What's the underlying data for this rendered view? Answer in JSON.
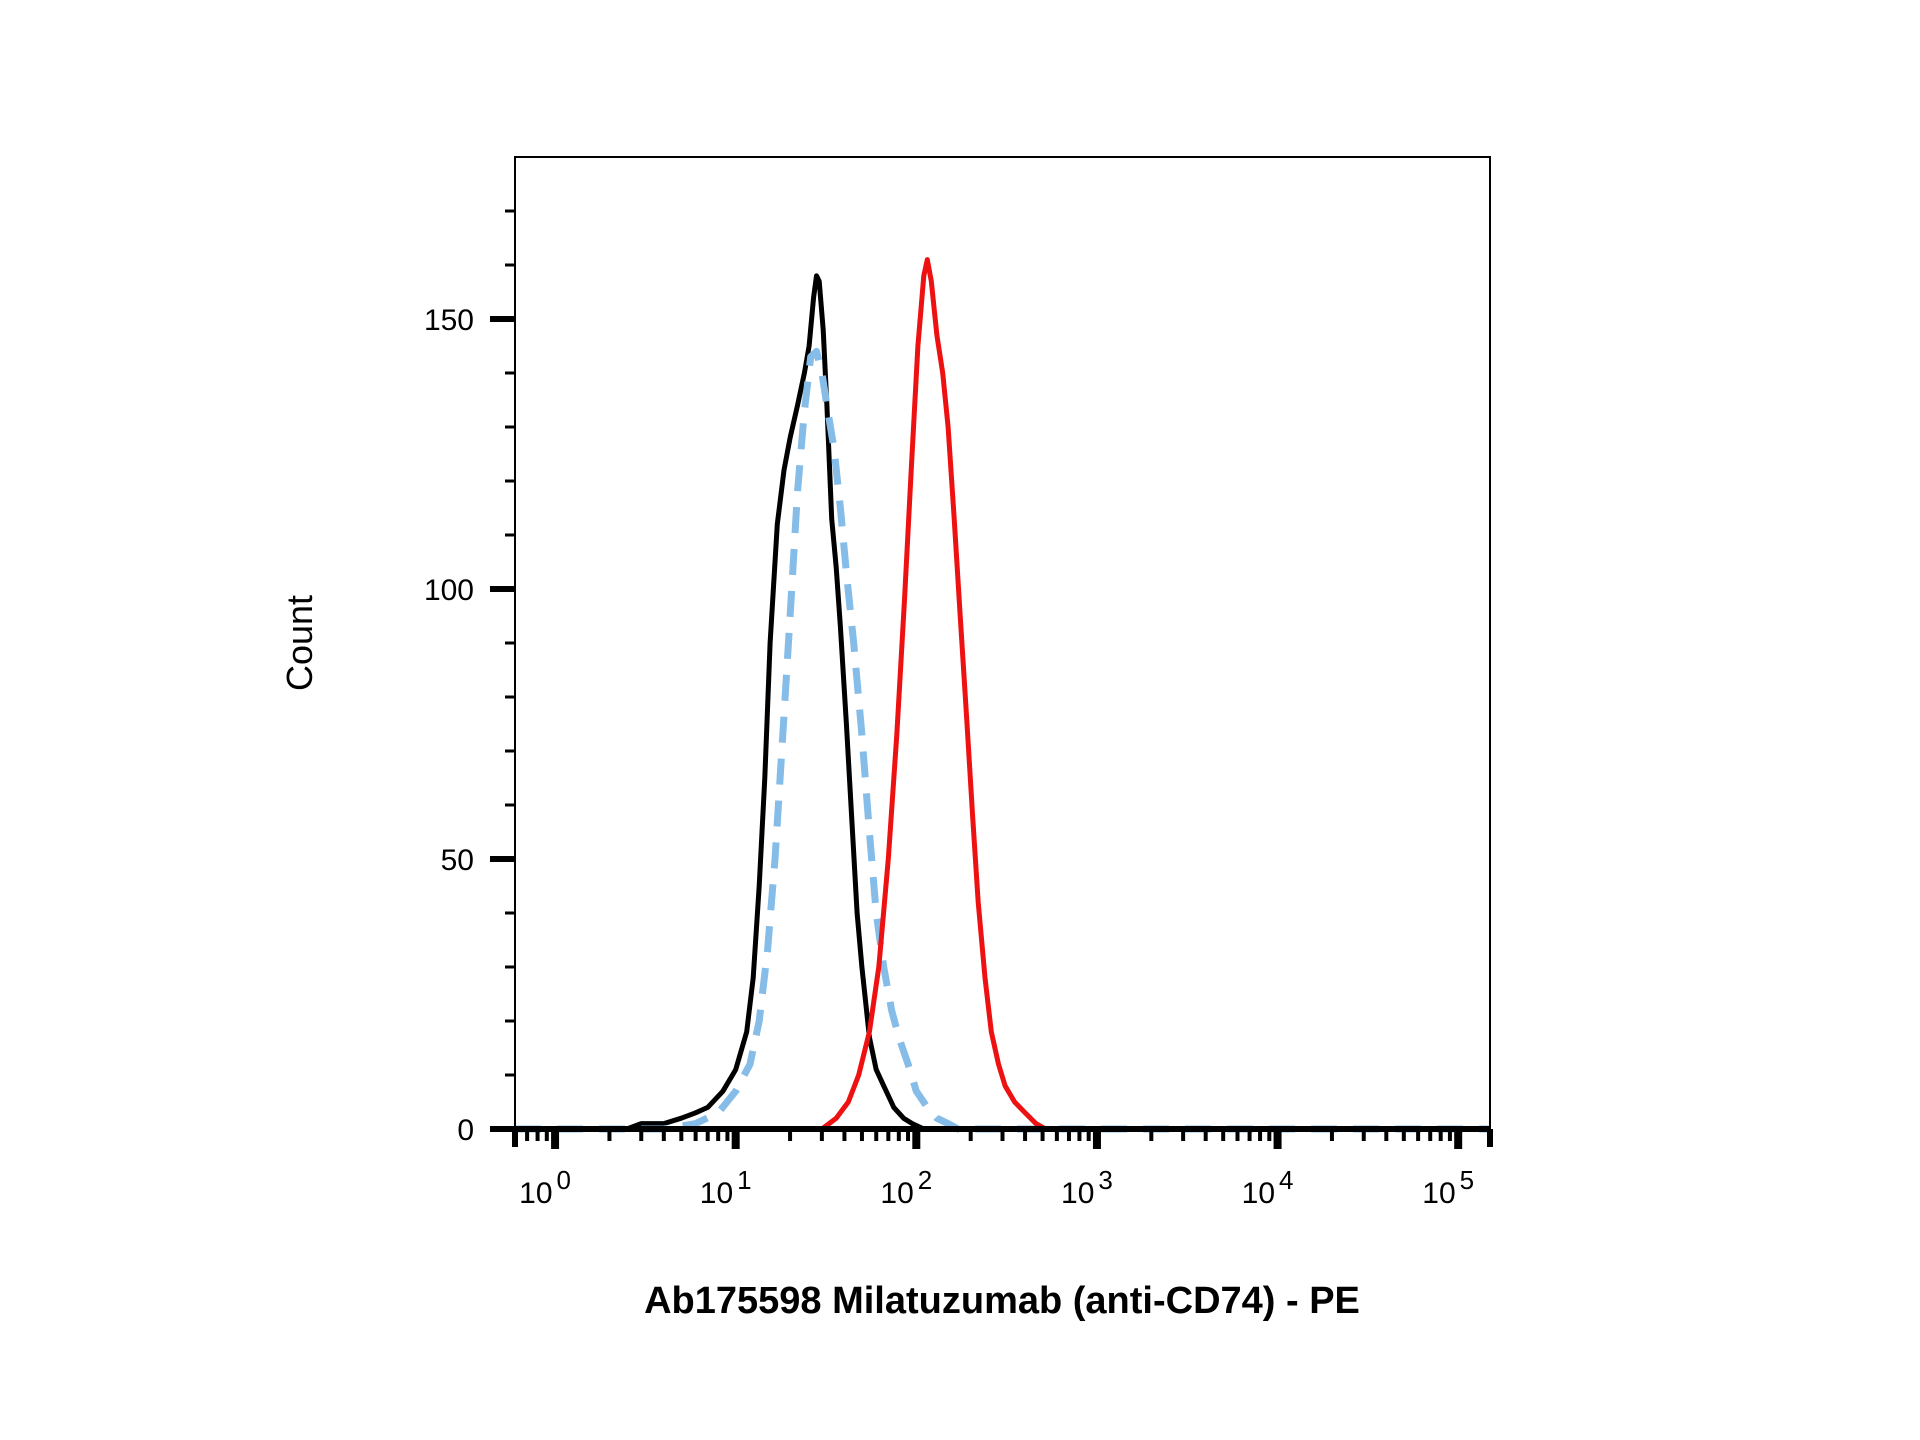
{
  "chart_data": {
    "type": "line",
    "title": "",
    "xlabel": "Ab175598 Milatuzumab (anti-CD74) - PE",
    "ylabel": "Count",
    "x_scale": "log",
    "xlim": [
      0.6,
      150000
    ],
    "ylim": [
      0,
      180
    ],
    "x_ticks": [
      {
        "base": "10",
        "exp": "0"
      },
      {
        "base": "10",
        "exp": "1"
      },
      {
        "base": "10",
        "exp": "2"
      },
      {
        "base": "10",
        "exp": "3"
      },
      {
        "base": "10",
        "exp": "4"
      },
      {
        "base": "10",
        "exp": "5"
      }
    ],
    "y_ticks": [
      {
        "label": "0",
        "value": 0
      },
      {
        "label": "50",
        "value": 50
      },
      {
        "label": "100",
        "value": 100
      },
      {
        "label": "150",
        "value": 150
      }
    ],
    "grid": false,
    "legend": "none",
    "series": [
      {
        "color": "#000000",
        "style": "solid",
        "points": [
          [
            0.6,
            0
          ],
          [
            2.5,
            0
          ],
          [
            3.0,
            1
          ],
          [
            4.0,
            1
          ],
          [
            5.0,
            2
          ],
          [
            6.0,
            3
          ],
          [
            7.0,
            4
          ],
          [
            8.5,
            7
          ],
          [
            10,
            11
          ],
          [
            11.5,
            18
          ],
          [
            12.5,
            28
          ],
          [
            13.5,
            45
          ],
          [
            14.5,
            65
          ],
          [
            15.5,
            90
          ],
          [
            17,
            112
          ],
          [
            18.5,
            122
          ],
          [
            20,
            128
          ],
          [
            22,
            134
          ],
          [
            24,
            140
          ],
          [
            25.5,
            145
          ],
          [
            27,
            154
          ],
          [
            28,
            158
          ],
          [
            29,
            157
          ],
          [
            30.5,
            148
          ],
          [
            32,
            134
          ],
          [
            34,
            113
          ],
          [
            36,
            104
          ],
          [
            38,
            93
          ],
          [
            41,
            75
          ],
          [
            44,
            57
          ],
          [
            47,
            40
          ],
          [
            50,
            30
          ],
          [
            55,
            17
          ],
          [
            60,
            11
          ],
          [
            66,
            8
          ],
          [
            75,
            4
          ],
          [
            85,
            2
          ],
          [
            95,
            1
          ],
          [
            110,
            0
          ],
          [
            150000,
            0
          ]
        ]
      },
      {
        "color": "#85bce8",
        "style": "dashed",
        "points": [
          [
            0.6,
            0
          ],
          [
            4.0,
            0
          ],
          [
            6.0,
            1
          ],
          [
            8.0,
            3
          ],
          [
            10,
            7
          ],
          [
            12,
            12
          ],
          [
            13.5,
            20
          ],
          [
            15,
            33
          ],
          [
            16.5,
            50
          ],
          [
            18,
            70
          ],
          [
            20,
            95
          ],
          [
            22,
            118
          ],
          [
            24,
            133
          ],
          [
            26,
            143
          ],
          [
            28,
            144
          ],
          [
            30,
            140
          ],
          [
            32,
            134
          ],
          [
            35,
            126
          ],
          [
            38,
            115
          ],
          [
            41,
            103
          ],
          [
            45,
            90
          ],
          [
            50,
            73
          ],
          [
            55,
            55
          ],
          [
            60,
            40
          ],
          [
            66,
            30
          ],
          [
            73,
            22
          ],
          [
            80,
            17
          ],
          [
            90,
            12
          ],
          [
            100,
            7
          ],
          [
            115,
            4
          ],
          [
            130,
            2
          ],
          [
            150,
            1
          ],
          [
            170,
            0
          ],
          [
            150000,
            0
          ]
        ]
      },
      {
        "color": "#ee1111",
        "style": "solid",
        "points": [
          [
            0.6,
            0
          ],
          [
            30,
            0
          ],
          [
            36,
            2
          ],
          [
            42,
            5
          ],
          [
            48,
            10
          ],
          [
            55,
            18
          ],
          [
            62,
            30
          ],
          [
            70,
            50
          ],
          [
            78,
            73
          ],
          [
            86,
            98
          ],
          [
            94,
            123
          ],
          [
            102,
            145
          ],
          [
            110,
            158
          ],
          [
            115,
            161
          ],
          [
            121,
            157
          ],
          [
            130,
            147
          ],
          [
            140,
            140
          ],
          [
            150,
            130
          ],
          [
            162,
            113
          ],
          [
            175,
            95
          ],
          [
            190,
            76
          ],
          [
            205,
            58
          ],
          [
            220,
            42
          ],
          [
            240,
            28
          ],
          [
            260,
            18
          ],
          [
            285,
            12
          ],
          [
            310,
            8
          ],
          [
            350,
            5
          ],
          [
            400,
            3
          ],
          [
            460,
            1
          ],
          [
            520,
            0
          ],
          [
            1000,
            0
          ],
          [
            5000,
            0
          ],
          [
            150000,
            0
          ]
        ]
      }
    ]
  }
}
